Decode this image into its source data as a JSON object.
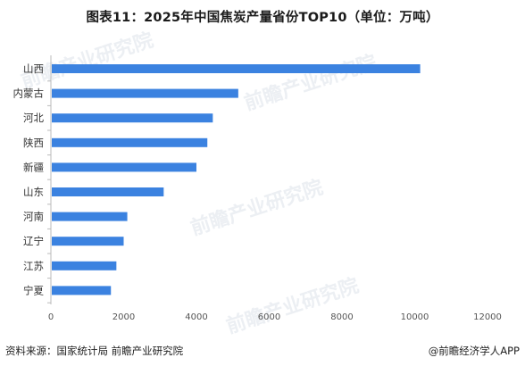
{
  "header": {
    "title": "图表11：2025年中国焦炭产量省份TOP10（单位：万吨）"
  },
  "footer": {
    "source": "资料来源：国家统计局 前瞻产业研究院",
    "brand": "@前瞻经济学人APP"
  },
  "watermark": {
    "text": "前瞻产业研究院"
  },
  "colors": {
    "bar": "#3b82e0",
    "axis": "#bbbbbb"
  },
  "chart_data": {
    "type": "bar",
    "orientation": "horizontal",
    "title": "图表11：2025年中国焦炭产量省份TOP10（单位：万吨）",
    "categories": [
      "山西",
      "内蒙古",
      "河北",
      "陕西",
      "新疆",
      "山东",
      "河南",
      "辽宁",
      "江苏",
      "宁夏"
    ],
    "values": [
      10150,
      5150,
      4450,
      4300,
      4000,
      3100,
      2100,
      2000,
      1800,
      1650
    ],
    "xlim": [
      0,
      12000
    ],
    "xticks": [
      0,
      2000,
      4000,
      6000,
      8000,
      10000,
      12000
    ],
    "grid": false
  }
}
